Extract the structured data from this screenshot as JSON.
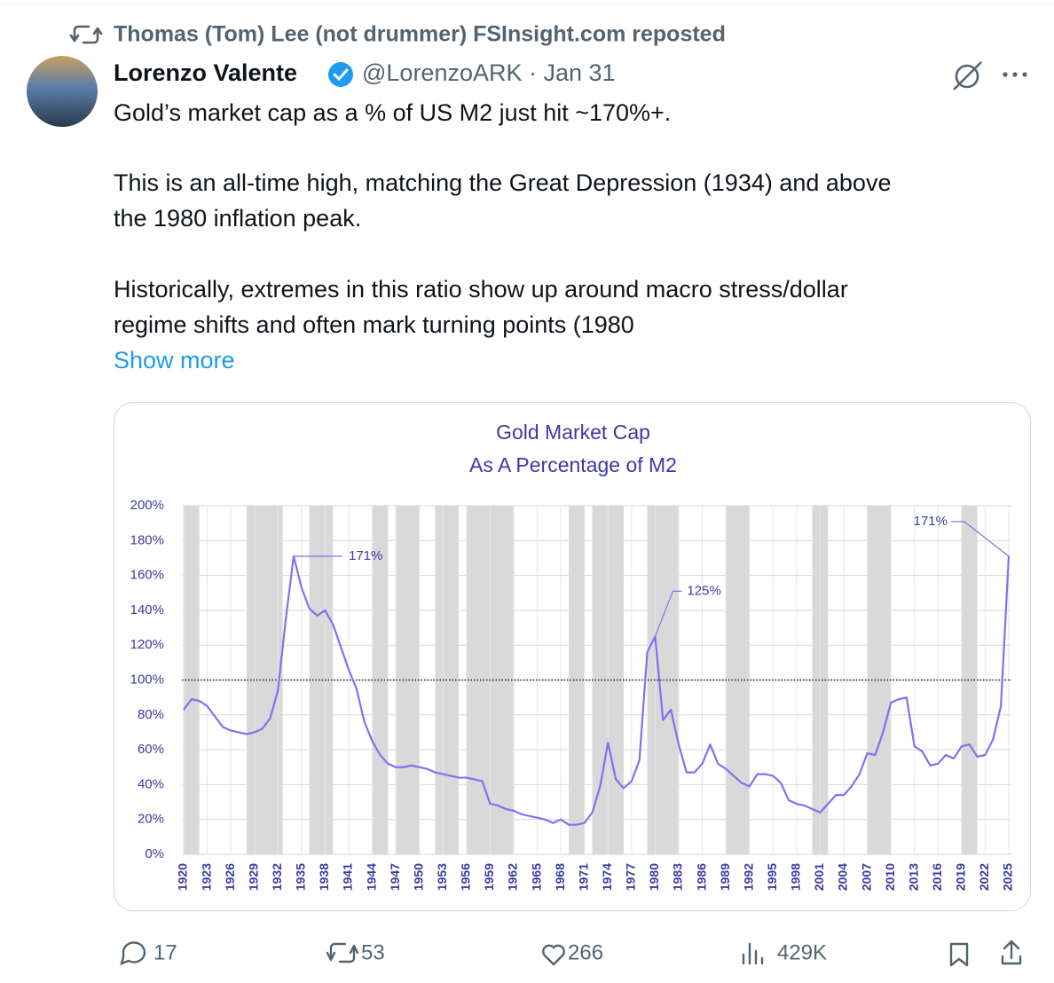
{
  "repost_line": "Thomas (Tom) Lee (not drummer) FSInsight.com reposted",
  "author": {
    "name": "Lorenzo Valente",
    "handle_date": "@LorenzoARK · Jan 31"
  },
  "text_lines": [
    "Gold’s market cap as a % of US M2 just hit ~170%+.",
    "This is an all-time high, matching the Great Depression (1934) and above",
    "the 1980 inflation peak.",
    "Historically, extremes in this ratio show up around macro stress/dollar",
    "regime shifts and often mark turning points (1980"
  ],
  "show_more": "Show more",
  "stats": {
    "replies": "17",
    "reposts": "53",
    "likes": "266",
    "views": "429K"
  },
  "chart_data": {
    "type": "line",
    "title": "Gold Market Cap",
    "subtitle": "As A Percentage of M2",
    "x": [
      1920,
      1921,
      1922,
      1923,
      1924,
      1925,
      1926,
      1927,
      1928,
      1929,
      1930,
      1931,
      1932,
      1933,
      1934,
      1935,
      1936,
      1937,
      1938,
      1939,
      1940,
      1941,
      1942,
      1943,
      1944,
      1945,
      1946,
      1947,
      1948,
      1949,
      1950,
      1951,
      1952,
      1953,
      1954,
      1955,
      1956,
      1957,
      1958,
      1959,
      1960,
      1961,
      1962,
      1963,
      1964,
      1965,
      1966,
      1967,
      1968,
      1969,
      1970,
      1971,
      1972,
      1973,
      1974,
      1975,
      1976,
      1977,
      1978,
      1979,
      1980,
      1981,
      1982,
      1983,
      1984,
      1985,
      1986,
      1987,
      1988,
      1989,
      1990,
      1991,
      1992,
      1993,
      1994,
      1995,
      1996,
      1997,
      1998,
      1999,
      2000,
      2001,
      2002,
      2003,
      2004,
      2005,
      2006,
      2007,
      2008,
      2009,
      2010,
      2011,
      2012,
      2013,
      2014,
      2015,
      2016,
      2017,
      2018,
      2019,
      2020,
      2021,
      2022,
      2023,
      2024,
      2025
    ],
    "series": [
      {
        "name": "Gold Market Cap / M2",
        "color": "#8470f0",
        "values": [
          83,
          89,
          88,
          85,
          79,
          73,
          71,
          70,
          69,
          70,
          72,
          78,
          94,
          135,
          171,
          153,
          141,
          137,
          140,
          132,
          119,
          106,
          95,
          76,
          65,
          57,
          52,
          50,
          50,
          51,
          50,
          49,
          47,
          46,
          45,
          44,
          44,
          43,
          42,
          29,
          28,
          26,
          25,
          23,
          22,
          21,
          20,
          18,
          20,
          17,
          17,
          18,
          24,
          39,
          64,
          43,
          38,
          42,
          54,
          116,
          125,
          77,
          83,
          63,
          47,
          47,
          52,
          63,
          52,
          49,
          45,
          41,
          39,
          46,
          46,
          45,
          41,
          31,
          29,
          28,
          26,
          24,
          29,
          34,
          34,
          39,
          46,
          58,
          57,
          70,
          87,
          89,
          90,
          62,
          59,
          51,
          52,
          57,
          55,
          62,
          63,
          56,
          57,
          66,
          85,
          171
        ]
      }
    ],
    "xlim": [
      1920,
      2025
    ],
    "xticks": [
      1920,
      1923,
      1926,
      1929,
      1932,
      1935,
      1938,
      1941,
      1944,
      1947,
      1950,
      1953,
      1956,
      1959,
      1962,
      1965,
      1968,
      1971,
      1974,
      1977,
      1980,
      1983,
      1986,
      1989,
      1992,
      1995,
      1998,
      2001,
      2004,
      2007,
      2010,
      2013,
      2016,
      2019,
      2022,
      2025
    ],
    "ylim": [
      0,
      200
    ],
    "yticks": [
      {
        "value": 0,
        "label": "0%"
      },
      {
        "value": 20,
        "label": "20%"
      },
      {
        "value": 40,
        "label": "40%"
      },
      {
        "value": 60,
        "label": "60%"
      },
      {
        "value": 80,
        "label": "80%"
      },
      {
        "value": 100,
        "label": "100%"
      },
      {
        "value": 120,
        "label": "120%"
      },
      {
        "value": 140,
        "label": "140%"
      },
      {
        "value": 160,
        "label": "160%"
      },
      {
        "value": 180,
        "label": "180%"
      },
      {
        "value": 200,
        "label": "200%"
      }
    ],
    "grid": true,
    "reference_line": 100,
    "shaded_periods": [
      [
        1920,
        1922
      ],
      [
        1928,
        1932.6
      ],
      [
        1936,
        1939
      ],
      [
        1944,
        1946
      ],
      [
        1947,
        1950
      ],
      [
        1952,
        1955
      ],
      [
        1956,
        1962
      ],
      [
        1969,
        1971
      ],
      [
        1972,
        1976
      ],
      [
        1979,
        1983
      ],
      [
        1989,
        1992
      ],
      [
        2000,
        2002
      ],
      [
        2007,
        2010
      ],
      [
        2019,
        2021
      ]
    ],
    "annotations": [
      {
        "x": 1934,
        "y": 171,
        "label": "171%"
      },
      {
        "x": 1980,
        "y": 125,
        "label": "125%"
      },
      {
        "x": 2025,
        "y": 171,
        "label": "171%"
      }
    ]
  }
}
